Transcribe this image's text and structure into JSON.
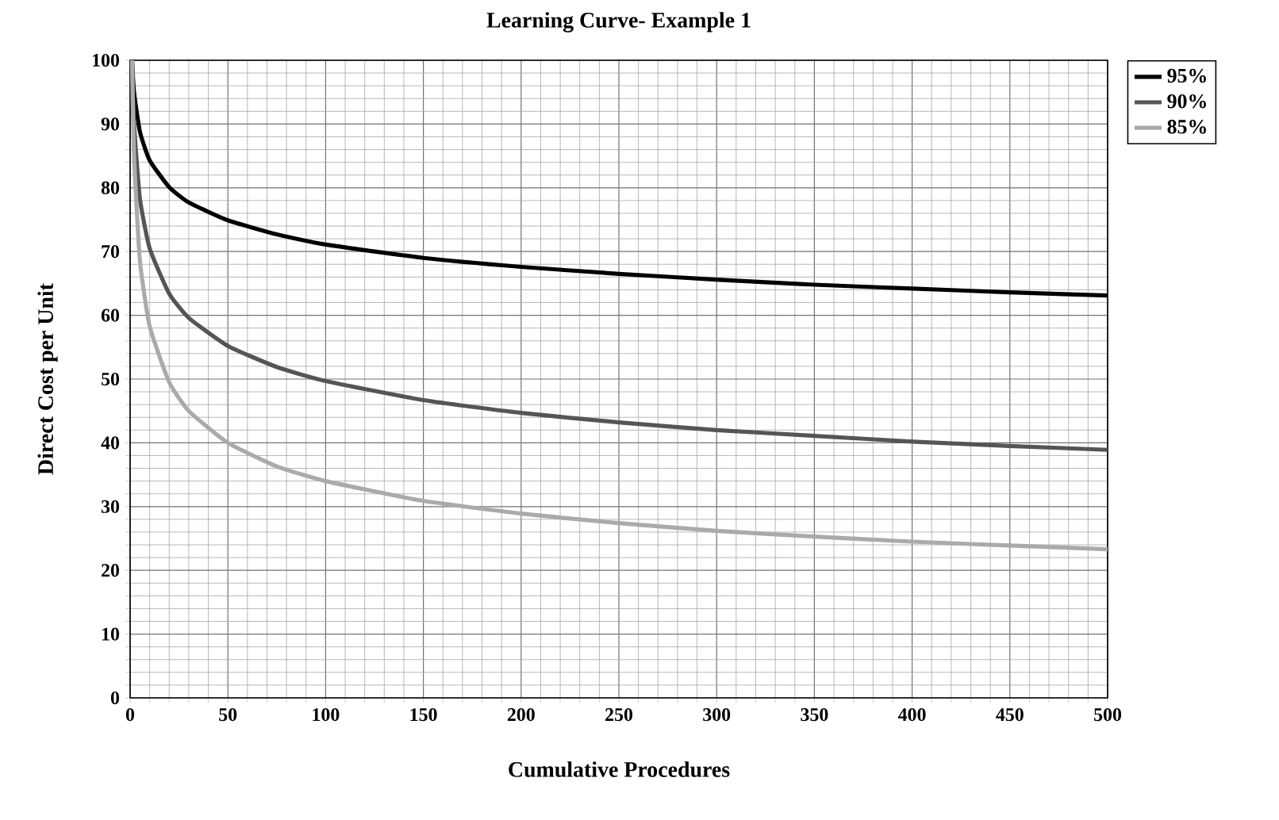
{
  "chart_data": {
    "type": "line",
    "title": "Learning Curve- Example 1",
    "xlabel": "Cumulative Procedures",
    "ylabel": "Direct Cost per Unit",
    "x": [
      1,
      2,
      5,
      10,
      20,
      30,
      50,
      75,
      100,
      150,
      200,
      250,
      300,
      350,
      400,
      450,
      500
    ],
    "series": [
      {
        "name": "95%",
        "color": "#000000",
        "values": [
          100,
          95,
          88.8,
          84.3,
          80.1,
          77.7,
          74.9,
          72.7,
          71.1,
          69.0,
          67.6,
          66.5,
          65.6,
          64.8,
          64.2,
          63.6,
          63.1
        ]
      },
      {
        "name": "90%",
        "color": "#555555",
        "values": [
          100,
          90,
          78.3,
          70.5,
          63.4,
          59.6,
          55.2,
          51.9,
          49.7,
          46.7,
          44.7,
          43.2,
          42.0,
          41.1,
          40.2,
          39.5,
          38.9
        ]
      },
      {
        "name": "85%",
        "color": "#aaaaaa",
        "values": [
          100,
          85,
          68.6,
          58.3,
          49.5,
          45.0,
          40.0,
          36.3,
          34.0,
          30.9,
          28.9,
          27.4,
          26.2,
          25.3,
          24.5,
          23.9,
          23.3
        ]
      }
    ],
    "xlim": [
      0,
      500
    ],
    "ylim": [
      0,
      100
    ],
    "xticks": [
      0,
      50,
      100,
      150,
      200,
      250,
      300,
      350,
      400,
      450,
      500
    ],
    "yticks": [
      0,
      10,
      20,
      30,
      40,
      50,
      60,
      70,
      80,
      90,
      100
    ],
    "grid": true,
    "legend": "top right",
    "marker": "none",
    "line_style": "solid"
  }
}
